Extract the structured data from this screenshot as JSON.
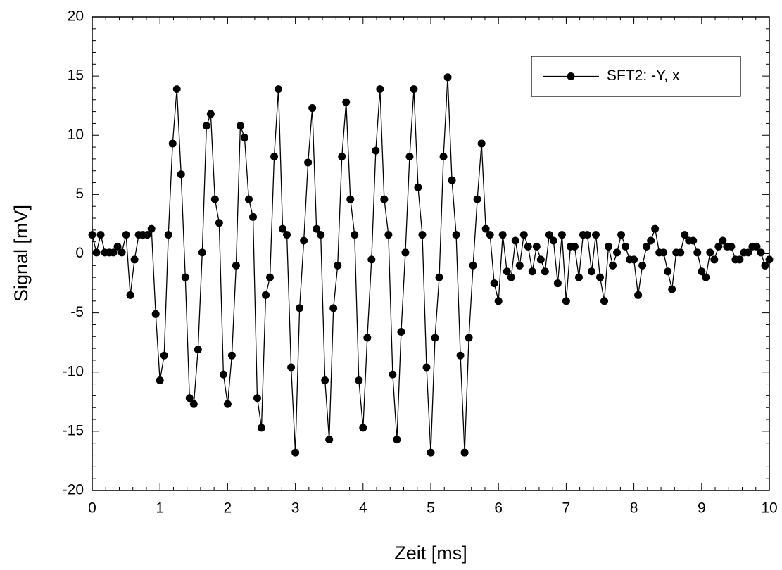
{
  "chart_data": {
    "type": "line",
    "xlabel": "Zeit [ms]",
    "ylabel": "Signal [mV]",
    "x": [
      0,
      0.0625,
      0.125,
      0.1875,
      0.25,
      0.3125,
      0.375,
      0.4375,
      0.5,
      0.5625,
      0.625,
      0.6875,
      0.75,
      0.8125,
      0.875,
      0.9375,
      1,
      1.0625,
      1.125,
      1.1875,
      1.25,
      1.3125,
      1.375,
      1.4375,
      1.5,
      1.5625,
      1.625,
      1.6875,
      1.75,
      1.8125,
      1.875,
      1.9375,
      2,
      2.0625,
      2.125,
      2.1875,
      2.25,
      2.3125,
      2.375,
      2.4375,
      2.5,
      2.5625,
      2.625,
      2.6875,
      2.75,
      2.8125,
      2.875,
      2.9375,
      3,
      3.0625,
      3.125,
      3.1875,
      3.25,
      3.3125,
      3.375,
      3.4375,
      3.5,
      3.5625,
      3.625,
      3.6875,
      3.75,
      3.8125,
      3.875,
      3.9375,
      4,
      4.0625,
      4.125,
      4.1875,
      4.25,
      4.3125,
      4.375,
      4.4375,
      4.5,
      4.5625,
      4.625,
      4.6875,
      4.75,
      4.8125,
      4.875,
      4.9375,
      5,
      5.0625,
      5.125,
      5.1875,
      5.25,
      5.3125,
      5.375,
      5.4375,
      5.5,
      5.5625,
      5.625,
      5.6875,
      5.75,
      5.8125,
      5.875,
      5.9375,
      6,
      6.0625,
      6.125,
      6.1875,
      6.25,
      6.3125,
      6.375,
      6.4375,
      6.5,
      6.5625,
      6.625,
      6.6875,
      6.75,
      6.8125,
      6.875,
      6.9375,
      7,
      7.0625,
      7.125,
      7.1875,
      7.25,
      7.3125,
      7.375,
      7.4375,
      7.5,
      7.5625,
      7.625,
      7.6875,
      7.75,
      7.8125,
      7.875,
      7.9375,
      8,
      8.0625,
      8.125,
      8.1875,
      8.25,
      8.3125,
      8.375,
      8.4375,
      8.5,
      8.5625,
      8.625,
      8.6875,
      8.75,
      8.8125,
      8.875,
      8.9375,
      9,
      9.0625,
      9.125,
      9.1875,
      9.25,
      9.3125,
      9.375,
      9.4375,
      9.5,
      9.5625,
      9.625,
      9.6875,
      9.75,
      9.8125,
      9.875,
      9.9375,
      10
    ],
    "series": [
      {
        "name": "SFT2: -Y, x",
        "color": "#000000",
        "values": [
          1.6,
          0.1,
          1.6,
          0.1,
          0.1,
          0.1,
          0.6,
          0.1,
          1.6,
          -3.5,
          -0.5,
          1.6,
          1.6,
          1.6,
          2.1,
          -5.1,
          -10.7,
          -8.6,
          1.6,
          9.3,
          13.9,
          6.7,
          -2.0,
          -12.2,
          -12.7,
          -8.1,
          0.1,
          10.8,
          11.8,
          4.6,
          2.6,
          -10.2,
          -12.7,
          -8.6,
          -1.0,
          10.8,
          9.8,
          4.6,
          3.1,
          -12.2,
          -14.7,
          -3.5,
          -2.0,
          8.2,
          13.9,
          2.1,
          1.6,
          -9.6,
          -16.8,
          -4.6,
          1.1,
          7.7,
          12.3,
          2.1,
          1.6,
          -10.7,
          -15.7,
          -4.6,
          -1.0,
          8.2,
          12.8,
          4.6,
          1.6,
          -10.7,
          -14.7,
          -7.1,
          -0.5,
          8.7,
          13.9,
          4.6,
          1.6,
          -10.2,
          -15.7,
          -6.6,
          0.1,
          8.2,
          13.9,
          5.6,
          1.6,
          -9.6,
          -16.8,
          -7.1,
          -2.0,
          8.2,
          14.9,
          6.2,
          1.6,
          -8.6,
          -16.8,
          -7.1,
          -1.0,
          4.6,
          9.3,
          2.1,
          1.6,
          -2.5,
          -4.0,
          1.6,
          -1.5,
          -2.0,
          1.1,
          -1.0,
          1.6,
          0.6,
          -1.5,
          0.6,
          -0.5,
          -1.5,
          1.6,
          1.1,
          -2.5,
          1.6,
          -4.0,
          0.6,
          0.6,
          -2.0,
          1.6,
          1.6,
          -1.5,
          1.6,
          -2.0,
          -4.0,
          0.6,
          -1.0,
          0.1,
          1.6,
          0.6,
          -0.5,
          -0.5,
          -3.5,
          -1.0,
          0.6,
          1.1,
          2.1,
          0.1,
          0.1,
          -1.5,
          -3.0,
          0.1,
          0.1,
          1.6,
          1.1,
          1.1,
          0.1,
          -1.5,
          -2.0,
          0.1,
          -0.5,
          0.6,
          1.1,
          0.6,
          0.6,
          -0.5,
          -0.5,
          0.1,
          0.1,
          0.6,
          0.6,
          0.1,
          -1.0,
          -0.5
        ]
      }
    ],
    "xlim": [
      0,
      10
    ],
    "xticks": [
      0,
      1,
      2,
      3,
      4,
      5,
      6,
      7,
      8,
      9,
      10
    ],
    "ylim": [
      -20,
      20
    ],
    "yticks": [
      -20,
      -15,
      -10,
      -5,
      0,
      5,
      10,
      15,
      20
    ],
    "legend": "upper right",
    "marker": "circle",
    "grid": false
  }
}
